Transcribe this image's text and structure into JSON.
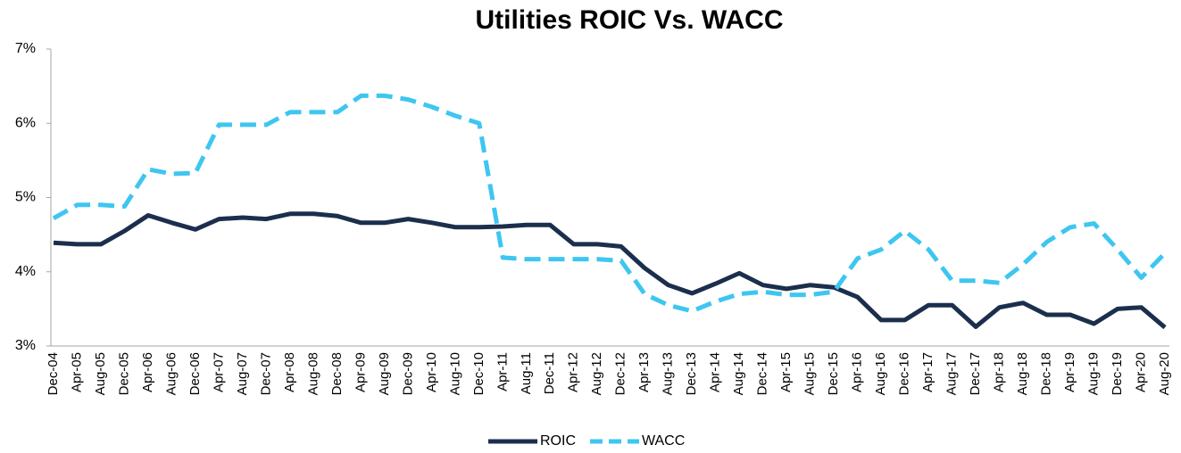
{
  "chart_data": {
    "type": "line",
    "title": "Utilities ROIC Vs. WACC",
    "categories": [
      "Dec-04",
      "Apr-05",
      "Aug-05",
      "Dec-05",
      "Apr-06",
      "Aug-06",
      "Dec-06",
      "Apr-07",
      "Aug-07",
      "Dec-07",
      "Apr-08",
      "Aug-08",
      "Dec-08",
      "Apr-09",
      "Aug-09",
      "Dec-09",
      "Apr-10",
      "Aug-10",
      "Dec-10",
      "Apr-11",
      "Aug-11",
      "Dec-11",
      "Apr-12",
      "Aug-12",
      "Dec-12",
      "Apr-13",
      "Aug-13",
      "Dec-13",
      "Apr-14",
      "Aug-14",
      "Dec-14",
      "Apr-15",
      "Aug-15",
      "Dec-15",
      "Apr-16",
      "Aug-16",
      "Dec-16",
      "Apr-17",
      "Aug-17",
      "Dec-17",
      "Apr-18",
      "Aug-18",
      "Dec-18",
      "Apr-19",
      "Aug-19",
      "Dec-19",
      "Apr-20",
      "Aug-20"
    ],
    "series": [
      {
        "name": "ROIC",
        "color": "#1b2f4d",
        "dashed": false,
        "values": [
          4.39,
          4.37,
          4.37,
          4.55,
          4.76,
          4.66,
          4.57,
          4.71,
          4.73,
          4.71,
          4.78,
          4.78,
          4.75,
          4.66,
          4.66,
          4.71,
          4.66,
          4.6,
          4.6,
          4.61,
          4.63,
          4.63,
          4.37,
          4.37,
          4.34,
          4.05,
          3.82,
          3.71,
          3.84,
          3.98,
          3.82,
          3.77,
          3.82,
          3.79,
          3.66,
          3.35,
          3.35,
          3.55,
          3.55,
          3.26,
          3.52,
          3.58,
          3.42,
          3.42,
          3.3,
          3.5,
          3.52,
          3.25
        ]
      },
      {
        "name": "WACC",
        "color": "#3ec6f0",
        "dashed": true,
        "values": [
          4.72,
          4.9,
          4.9,
          4.88,
          5.38,
          5.32,
          5.33,
          5.98,
          5.98,
          5.98,
          6.15,
          6.15,
          6.15,
          6.37,
          6.37,
          6.32,
          6.22,
          6.1,
          6.0,
          4.19,
          4.17,
          4.17,
          4.17,
          4.17,
          4.15,
          3.7,
          3.55,
          3.47,
          3.6,
          3.7,
          3.73,
          3.69,
          3.69,
          3.73,
          4.18,
          4.3,
          4.55,
          4.3,
          3.88,
          3.88,
          3.85,
          4.1,
          4.4,
          4.6,
          4.65,
          4.3,
          3.92,
          4.25
        ]
      }
    ],
    "ylim": [
      3,
      7
    ],
    "yticks": [
      {
        "value": 3,
        "label": "3%"
      },
      {
        "value": 4,
        "label": "4%"
      },
      {
        "value": 5,
        "label": "5%"
      },
      {
        "value": 6,
        "label": "6%"
      },
      {
        "value": 7,
        "label": "7%"
      }
    ],
    "grid": false,
    "legend": "bottom"
  }
}
